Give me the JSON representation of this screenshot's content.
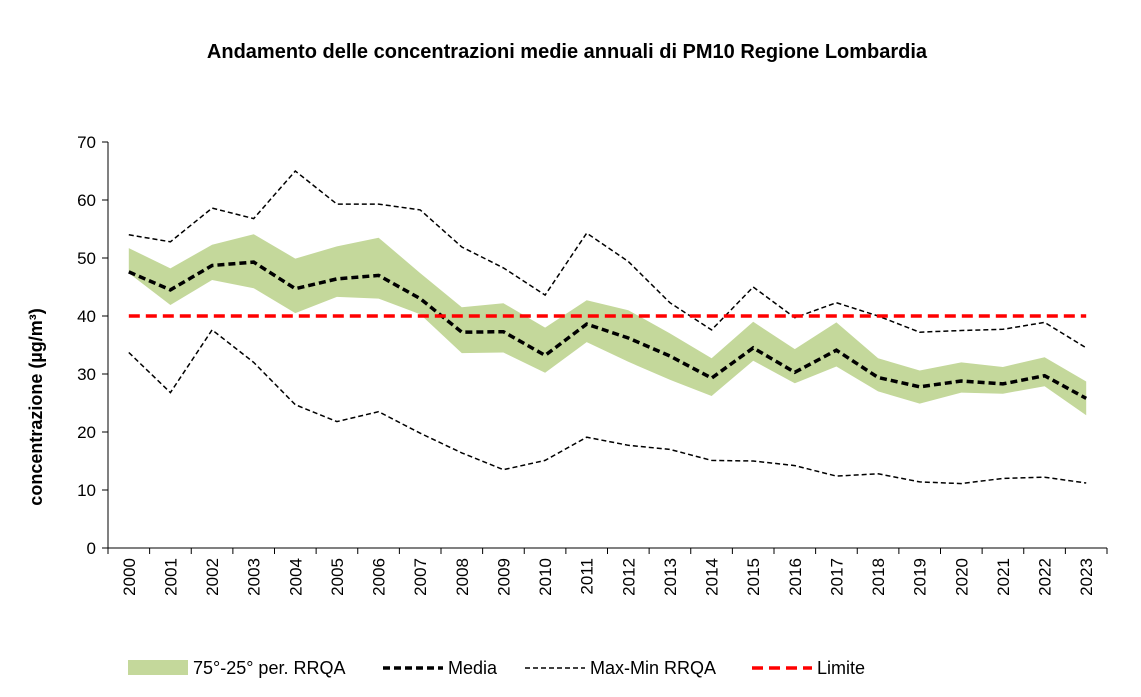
{
  "chart_data": {
    "type": "line",
    "title": "Andamento delle concentrazioni medie annuali di PM10 Regione Lombardia",
    "ylabel": "concentrazione (µg/m³)",
    "xlabel": "",
    "ylim": [
      0,
      70
    ],
    "yticks": [
      0,
      10,
      20,
      30,
      40,
      50,
      60,
      70
    ],
    "categories": [
      "2000",
      "2001",
      "2002",
      "2003",
      "2004",
      "2005",
      "2006",
      "2007",
      "2008",
      "2009",
      "2010",
      "2011",
      "2012",
      "2013",
      "2014",
      "2015",
      "2016",
      "2017",
      "2018",
      "2019",
      "2020",
      "2021",
      "2022",
      "2023"
    ],
    "band": {
      "name": "75°-25° per. RRQA",
      "color": "#c4d89b",
      "upper": [
        51.7,
        48.2,
        52.3,
        54.1,
        49.9,
        52.0,
        53.5,
        47.4,
        41.5,
        42.2,
        38.0,
        42.7,
        41.0,
        37.0,
        32.7,
        39.0,
        34.3,
        38.9,
        32.7,
        30.6,
        32.0,
        31.2,
        32.9,
        28.7
      ],
      "lower": [
        47.4,
        41.9,
        46.2,
        44.8,
        40.5,
        43.3,
        43.0,
        40.3,
        33.6,
        33.7,
        30.2,
        35.5,
        32.1,
        29.0,
        26.2,
        32.3,
        28.4,
        31.3,
        27.0,
        24.9,
        26.8,
        26.6,
        27.9,
        22.9
      ]
    },
    "series": [
      {
        "name": "Media",
        "color": "#000000",
        "style": "bold-dashed",
        "values": [
          47.6,
          44.5,
          48.7,
          49.3,
          44.7,
          46.4,
          47.0,
          43.0,
          37.2,
          37.3,
          33.2,
          38.6,
          36.2,
          33.1,
          29.3,
          34.5,
          30.3,
          34.1,
          29.4,
          27.8,
          28.8,
          28.3,
          29.7,
          25.8
        ]
      },
      {
        "name": "Max-Min RRQA",
        "color": "#000000",
        "style": "thin-dashed",
        "max": [
          54.0,
          52.8,
          58.6,
          56.8,
          65.0,
          59.3,
          59.3,
          58.3,
          51.9,
          48.3,
          43.6,
          54.3,
          49.4,
          42.3,
          37.6,
          45.0,
          39.7,
          42.3,
          40.0,
          37.2,
          37.5,
          37.7,
          38.9,
          34.5
        ],
        "min": [
          33.7,
          26.8,
          37.6,
          32.0,
          24.7,
          21.8,
          23.5,
          19.8,
          16.4,
          13.5,
          15.1,
          19.1,
          17.7,
          17.0,
          15.1,
          15.0,
          14.2,
          12.4,
          12.8,
          11.4,
          11.1,
          12.0,
          12.2,
          11.2
        ]
      },
      {
        "name": "Limite",
        "color": "#ff0000",
        "style": "bold-dashed",
        "value": 40
      }
    ],
    "legend": [
      "75°-25° per. RRQA",
      "Media",
      "Max-Min RRQA",
      "Limite"
    ],
    "legend_position": "bottom",
    "grid": false
  }
}
